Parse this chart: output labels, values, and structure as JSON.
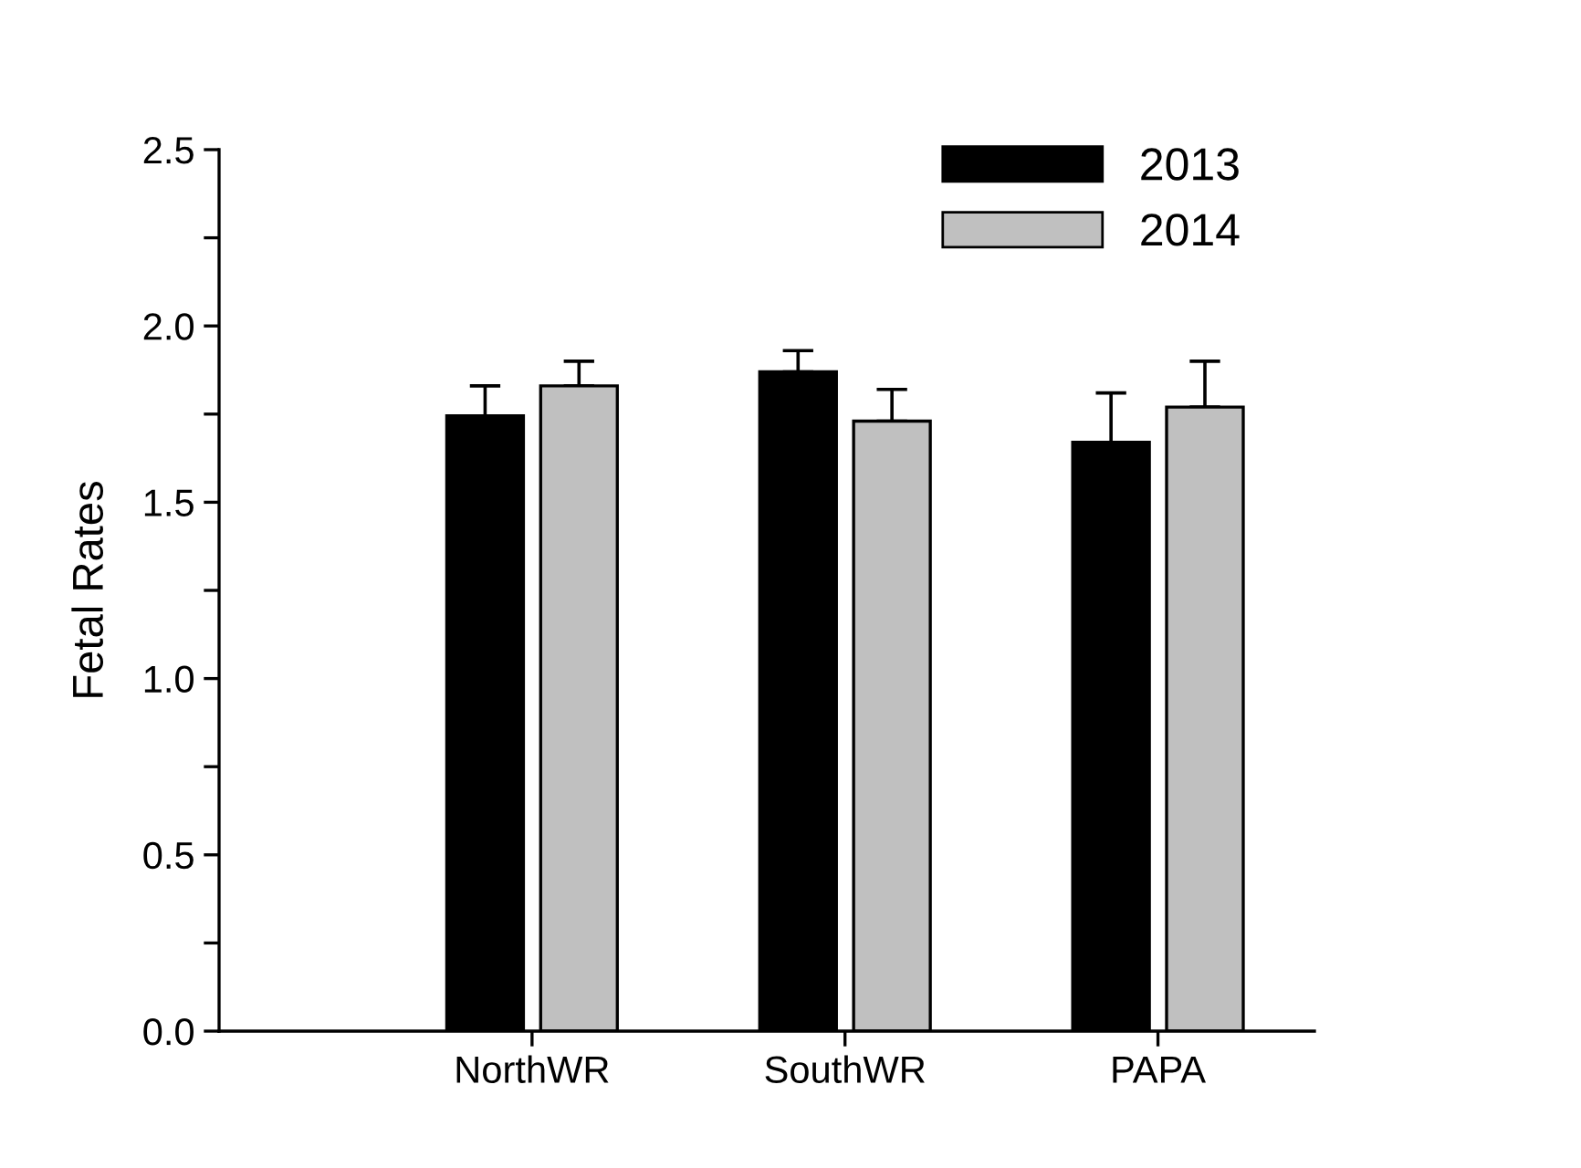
{
  "chart_data": {
    "type": "bar",
    "ylabel": "Fetal Rates",
    "categories": [
      "NorthWR",
      "SouthWR",
      "PAPA"
    ],
    "series": [
      {
        "name": "2013",
        "color": "#000000",
        "values": [
          1.745,
          1.87,
          1.67
        ],
        "errors": [
          [
            1.745,
            1.83
          ],
          [
            1.87,
            1.93
          ],
          [
            1.67,
            1.81
          ]
        ]
      },
      {
        "name": "2014",
        "color": "#c0c0c0",
        "values": [
          1.83,
          1.73,
          1.77
        ],
        "errors": [
          [
            1.83,
            1.9
          ],
          [
            1.73,
            1.82
          ],
          [
            1.77,
            1.9
          ]
        ]
      }
    ],
    "ylim": [
      0,
      2.5
    ],
    "yticks": [
      {
        "value": 0,
        "label": "0.0"
      },
      {
        "value": 0.25,
        "label": null
      },
      {
        "value": 0.5,
        "label": "0.5"
      },
      {
        "value": 0.75,
        "label": null
      },
      {
        "value": 1,
        "label": "1.0"
      },
      {
        "value": 1.25,
        "label": null
      },
      {
        "value": 1.5,
        "label": "1.5"
      },
      {
        "value": 1.75,
        "label": null
      },
      {
        "value": 2,
        "label": "2.0"
      },
      {
        "value": 2.25,
        "label": null
      },
      {
        "value": 2.5,
        "label": "2.5"
      }
    ],
    "legend": "top right",
    "grid": false
  }
}
